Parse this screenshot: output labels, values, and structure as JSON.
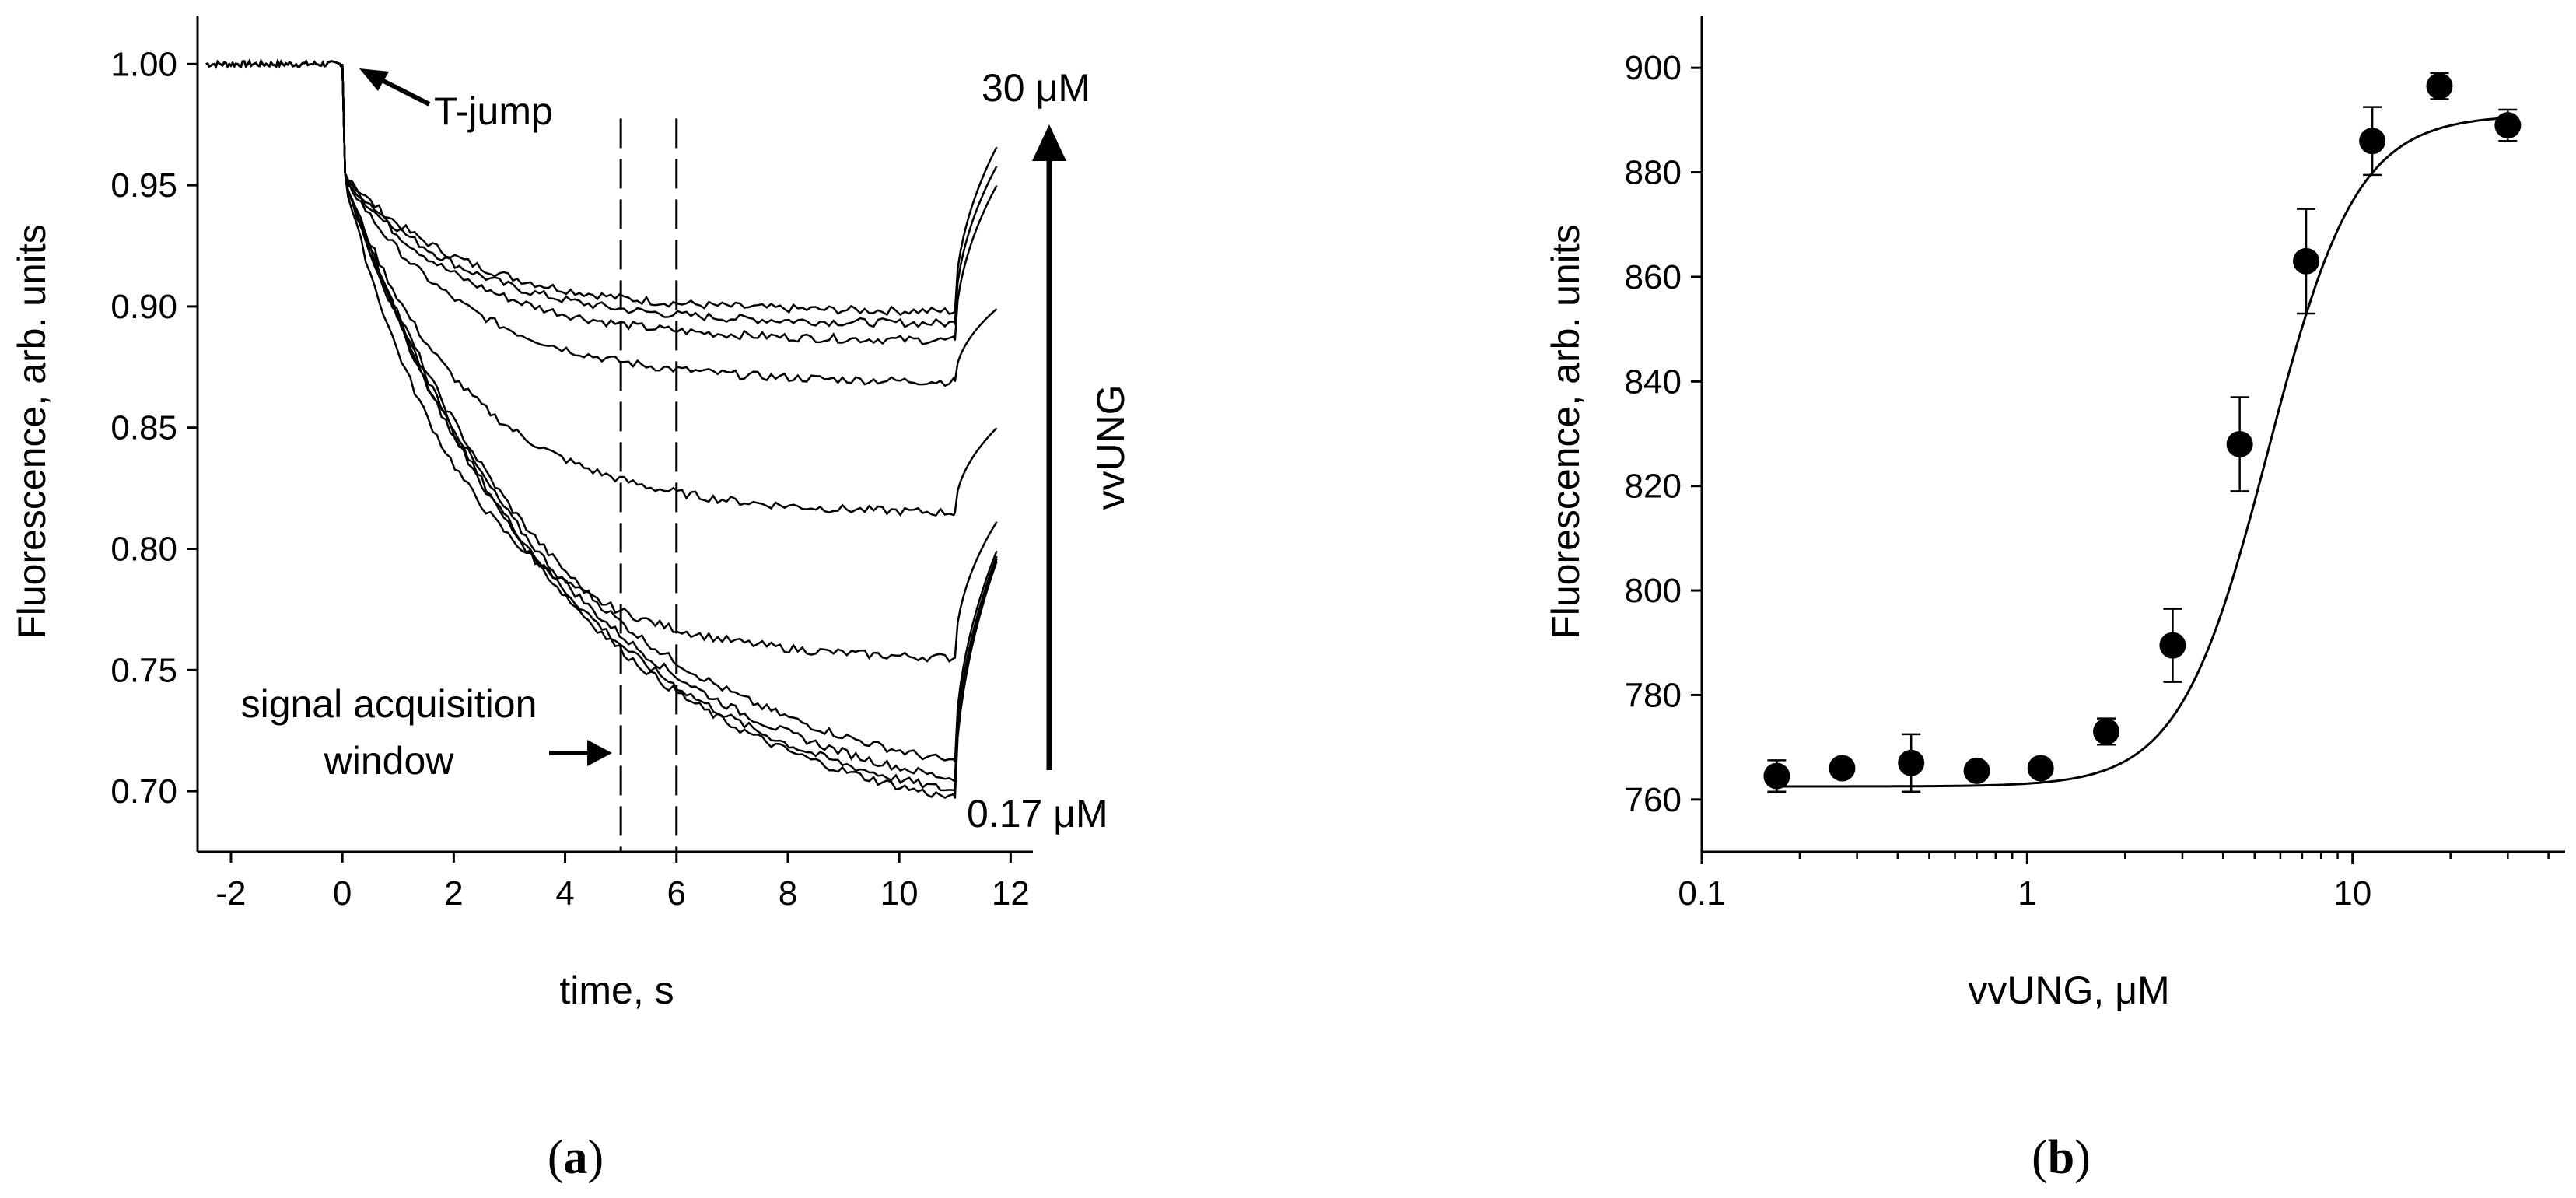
{
  "chart_data": [
    {
      "type": "line",
      "panel_label": "a",
      "xlabel": "time, s",
      "ylabel": "Fluorescence, arb. units",
      "xlim": [
        -2.6,
        12.4
      ],
      "ylim": [
        0.675,
        1.02
      ],
      "x_ticks": [
        -2,
        0,
        2,
        4,
        6,
        8,
        10,
        12
      ],
      "y_ticks": [
        0.7,
        0.75,
        0.8,
        0.85,
        0.9,
        0.95,
        1.0
      ],
      "x_tick_labels": [
        "-2",
        "0",
        "2",
        "4",
        "6",
        "8",
        "10",
        "12"
      ],
      "y_tick_labels": [
        "0.70",
        "0.75",
        "0.80",
        "0.85",
        "0.90",
        "0.95",
        "1.00"
      ],
      "grid": false,
      "jump_time": 0.0,
      "recovery_time": 11.0,
      "end_time": 11.8,
      "acquisition_window": [
        5,
        6
      ],
      "series": [
        {
          "t0_value": 0.955,
          "min_value": 0.898,
          "end_value": 0.968
        },
        {
          "t0_value": 0.955,
          "min_value": 0.893,
          "end_value": 0.96
        },
        {
          "t0_value": 0.955,
          "min_value": 0.886,
          "end_value": 0.952
        },
        {
          "t0_value": 0.955,
          "min_value": 0.869,
          "end_value": 0.9
        },
        {
          "t0_value": 0.955,
          "min_value": 0.815,
          "end_value": 0.851
        },
        {
          "t0_value": 0.955,
          "min_value": 0.755,
          "end_value": 0.813
        },
        {
          "t0_value": 0.955,
          "min_value": 0.712,
          "end_value": 0.802
        },
        {
          "t0_value": 0.955,
          "min_value": 0.705,
          "end_value": 0.8
        },
        {
          "t0_value": 0.955,
          "min_value": 0.7,
          "end_value": 0.799
        },
        {
          "t0_value": 0.955,
          "min_value": 0.697,
          "end_value": 0.798
        }
      ],
      "annotations": {
        "tjump": "T-jump",
        "top_conc": "30 μM",
        "bottom_conc": "0.17 μM",
        "arrow_label": "vvUNG",
        "window_line1": "signal acquisition",
        "window_line2": "window"
      }
    },
    {
      "type": "scatter",
      "panel_label": "b",
      "xlabel": "vvUNG, μM",
      "ylabel": "Fluorescence, arb. units",
      "x_scale": "log",
      "xlim": [
        0.1,
        45
      ],
      "ylim": [
        750,
        910
      ],
      "x_ticks": [
        0.1,
        1,
        10
      ],
      "y_ticks": [
        760,
        780,
        800,
        820,
        840,
        860,
        880,
        900
      ],
      "x_tick_labels": [
        "0.1",
        "1",
        "10"
      ],
      "y_tick_labels": [
        "760",
        "780",
        "800",
        "820",
        "840",
        "860",
        "880",
        "900"
      ],
      "grid": false,
      "points": [
        {
          "x": 0.17,
          "y": 764.5,
          "err": 3
        },
        {
          "x": 0.27,
          "y": 766,
          "err": 1.5
        },
        {
          "x": 0.44,
          "y": 767,
          "err": 5.5
        },
        {
          "x": 0.7,
          "y": 765.5,
          "err": 1
        },
        {
          "x": 1.1,
          "y": 766,
          "err": 1
        },
        {
          "x": 1.75,
          "y": 773,
          "err": 2.5
        },
        {
          "x": 2.8,
          "y": 789.5,
          "err": 7
        },
        {
          "x": 4.5,
          "y": 828,
          "err": 9
        },
        {
          "x": 7.2,
          "y": 863,
          "err": 10
        },
        {
          "x": 11.5,
          "y": 886,
          "err": 6.5
        },
        {
          "x": 18.5,
          "y": 896.5,
          "err": 2.5
        },
        {
          "x": 30,
          "y": 889,
          "err": 3
        }
      ],
      "fit": {
        "bottom": 762.5,
        "top": 891,
        "ec50": 5.5,
        "hill": 3.2
      }
    }
  ],
  "colors": {
    "ink": "#000000",
    "background": "#ffffff"
  }
}
